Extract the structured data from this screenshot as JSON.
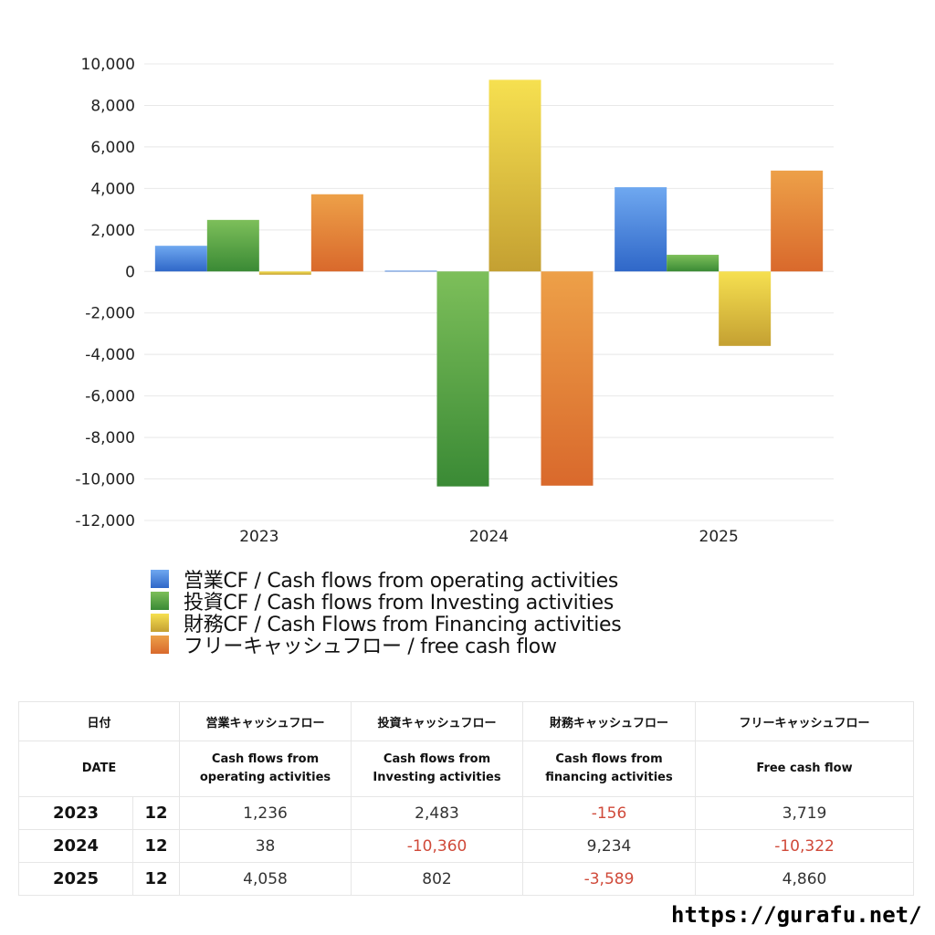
{
  "chart_data": {
    "type": "bar",
    "categories": [
      "2023",
      "2024",
      "2025"
    ],
    "ylim": [
      -12000,
      10000
    ],
    "yticks": [
      "10,000",
      "8,000",
      "6,000",
      "4,000",
      "2,000",
      "0",
      "-2,000",
      "-4,000",
      "-6,000",
      "-8,000",
      "-10,000",
      "-12,000"
    ],
    "ytick_values": [
      10000,
      8000,
      6000,
      4000,
      2000,
      0,
      -2000,
      -4000,
      -6000,
      -8000,
      -10000,
      -12000
    ],
    "grid": true,
    "legend_position": "bottom-left",
    "series": [
      {
        "name": "営業CF / Cash flows from operating activities",
        "values": [
          1236,
          38,
          4058
        ],
        "color_top": "#6fa8f0",
        "color_bottom": "#2f67c8"
      },
      {
        "name": "投資CF / Cash flows from Investing activities",
        "values": [
          2483,
          -10360,
          802
        ],
        "color_top": "#7dbf5a",
        "color_bottom": "#3a8a35"
      },
      {
        "name": "財務CF / Cash Flows from Financing activities",
        "values": [
          -156,
          9234,
          -3589
        ],
        "color_top": "#f6e050",
        "color_bottom": "#c4a032"
      },
      {
        "name": "フリーキャッシュフロー / free cash flow",
        "values": [
          3719,
          -10322,
          4860
        ],
        "color_top": "#eda048",
        "color_bottom": "#d9692c"
      }
    ]
  },
  "table": {
    "header1": {
      "date": "日付",
      "op": "営業キャッシュフロー",
      "inv": "投資キャッシュフロー",
      "fin": "財務キャッシュフロー",
      "free": "フリーキャッシュフロー"
    },
    "header2": {
      "date": "DATE",
      "op_l1": "Cash flows from",
      "op_l2": "operating activities",
      "inv_l1": "Cash flows from",
      "inv_l2": "Investing activities",
      "fin_l1": "Cash flows from",
      "fin_l2": "financing activities",
      "free": "Free cash flow"
    },
    "rows": [
      {
        "year": "2023",
        "month": "12",
        "op": "1,236",
        "inv": "2,483",
        "fin": "-156",
        "free": "3,719"
      },
      {
        "year": "2024",
        "month": "12",
        "op": "38",
        "inv": "-10,360",
        "fin": "9,234",
        "free": "-10,322"
      },
      {
        "year": "2025",
        "month": "12",
        "op": "4,058",
        "inv": "802",
        "fin": "-3,589",
        "free": "4,860"
      }
    ]
  },
  "footer": {
    "url": "https://gurafu.net/"
  }
}
